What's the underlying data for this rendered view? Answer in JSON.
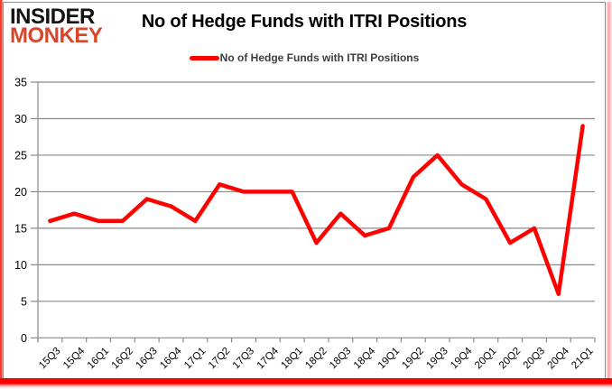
{
  "logo": {
    "top": "INSIDER",
    "bottom": "MONKEY",
    "top_color": "#141414",
    "bottom_color": "#d9472b"
  },
  "header": {
    "title": "No of Hedge Funds with ITRI Positions"
  },
  "legend": {
    "label": "No of Hedge Funds with ITRI Positions",
    "swatch_color": "#ff0000"
  },
  "chart_data": {
    "type": "line",
    "title": "No of Hedge Funds with ITRI Positions",
    "categories": [
      "15Q3",
      "15Q4",
      "16Q1",
      "16Q2",
      "16Q3",
      "16Q4",
      "17Q1",
      "17Q2",
      "17Q3",
      "17Q4",
      "18Q1",
      "18Q2",
      "18Q3",
      "18Q4",
      "19Q1",
      "19Q2",
      "19Q3",
      "19Q4",
      "20Q1",
      "20Q2",
      "20Q3",
      "20Q4",
      "21Q1"
    ],
    "series": [
      {
        "name": "No of Hedge Funds with ITRI Positions",
        "color": "#ff0000",
        "values": [
          16,
          17,
          16,
          16,
          19,
          18,
          16,
          21,
          20,
          20,
          20,
          13,
          17,
          14,
          15,
          22,
          25,
          21,
          19,
          13,
          15,
          6,
          29
        ]
      }
    ],
    "ylim": [
      0,
      35
    ],
    "yticks": [
      0,
      5,
      10,
      15,
      20,
      25,
      30,
      35
    ],
    "grid": true,
    "legend_position": "top-center",
    "xlabel": "",
    "ylabel": "",
    "gridline_color": "#898989",
    "axis_label_color": "#000000"
  }
}
